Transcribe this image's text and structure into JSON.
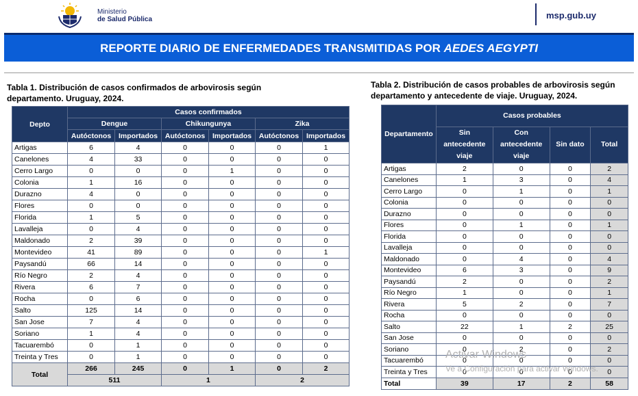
{
  "header": {
    "ministry_line1": "Ministerio",
    "ministry_line2": "de Salud Pública",
    "site": "msp.gub.uy",
    "logo_icon": "uruguay-coat-of-arms-icon"
  },
  "banner": {
    "title_prefix": "REPORTE DIARIO DE ENFERMEDADES TRANSMITIDAS POR ",
    "title_italic": "AEDES AEGYPTI"
  },
  "table1": {
    "caption_line1": "Tabla 1. Distribución de casos confirmados de arbovirosis según",
    "caption_line2": "departamento. Uruguay, 2024.",
    "header_depto": "Depto",
    "header_group": "Casos confirmados",
    "diseases": [
      "Dengue",
      "Chikungunya",
      "Zika"
    ],
    "subheaders": [
      "Autóctonos",
      "Importados",
      "Autóctonos",
      "Importados",
      "Autóctonos",
      "Importados"
    ],
    "rows": [
      {
        "d": "Artigas",
        "v": [
          "6",
          "4",
          "0",
          "0",
          "0",
          "1"
        ]
      },
      {
        "d": "Canelones",
        "v": [
          "4",
          "33",
          "0",
          "0",
          "0",
          "0"
        ]
      },
      {
        "d": "Cerro Largo",
        "v": [
          "0",
          "0",
          "0",
          "1",
          "0",
          "0"
        ]
      },
      {
        "d": "Colonia",
        "v": [
          "1",
          "16",
          "0",
          "0",
          "0",
          "0"
        ]
      },
      {
        "d": "Durazno",
        "v": [
          "4",
          "0",
          "0",
          "0",
          "0",
          "0"
        ]
      },
      {
        "d": "Flores",
        "v": [
          "0",
          "0",
          "0",
          "0",
          "0",
          "0"
        ]
      },
      {
        "d": "Florida",
        "v": [
          "1",
          "5",
          "0",
          "0",
          "0",
          "0"
        ]
      },
      {
        "d": "Lavalleja",
        "v": [
          "0",
          "4",
          "0",
          "0",
          "0",
          "0"
        ]
      },
      {
        "d": "Maldonado",
        "v": [
          "2",
          "39",
          "0",
          "0",
          "0",
          "0"
        ]
      },
      {
        "d": "Montevideo",
        "v": [
          "41",
          "89",
          "0",
          "0",
          "0",
          "1"
        ]
      },
      {
        "d": "Paysandú",
        "v": [
          "66",
          "14",
          "0",
          "0",
          "0",
          "0"
        ]
      },
      {
        "d": "Río Negro",
        "v": [
          "2",
          "4",
          "0",
          "0",
          "0",
          "0"
        ]
      },
      {
        "d": "Rivera",
        "v": [
          "6",
          "7",
          "0",
          "0",
          "0",
          "0"
        ]
      },
      {
        "d": "Rocha",
        "v": [
          "0",
          "6",
          "0",
          "0",
          "0",
          "0"
        ]
      },
      {
        "d": "Salto",
        "v": [
          "125",
          "14",
          "0",
          "0",
          "0",
          "0"
        ]
      },
      {
        "d": "San Jose",
        "v": [
          "7",
          "4",
          "0",
          "0",
          "0",
          "0"
        ]
      },
      {
        "d": "Soriano",
        "v": [
          "1",
          "4",
          "0",
          "0",
          "0",
          "0"
        ]
      },
      {
        "d": "Tacuarembó",
        "v": [
          "0",
          "1",
          "0",
          "0",
          "0",
          "0"
        ]
      },
      {
        "d": "Treinta y Tres",
        "v": [
          "0",
          "1",
          "0",
          "0",
          "0",
          "0"
        ]
      }
    ],
    "total_label": "Total",
    "total_values": [
      "266",
      "245",
      "0",
      "1",
      "0",
      "2"
    ],
    "total_sums": [
      "511",
      "1",
      "2"
    ]
  },
  "table2": {
    "caption_line1": "Tabla 2. Distribución de casos probables de arbovirosis según",
    "caption_line2": "departamento y antecedente de viaje. Uruguay, 2024.",
    "header_depto": "Departamento",
    "header_group": "Casos probables",
    "subheaders": [
      "Sin antecedente viaje",
      "Con antecedente viaje",
      "Sin dato",
      "Total"
    ],
    "rows": [
      {
        "d": "Artigas",
        "v": [
          "2",
          "0",
          "0",
          "2"
        ]
      },
      {
        "d": "Canelones",
        "v": [
          "1",
          "3",
          "0",
          "4"
        ]
      },
      {
        "d": "Cerro Largo",
        "v": [
          "0",
          "1",
          "0",
          "1"
        ]
      },
      {
        "d": "Colonia",
        "v": [
          "0",
          "0",
          "0",
          "0"
        ]
      },
      {
        "d": "Durazno",
        "v": [
          "0",
          "0",
          "0",
          "0"
        ]
      },
      {
        "d": "Flores",
        "v": [
          "0",
          "1",
          "0",
          "1"
        ]
      },
      {
        "d": "Florida",
        "v": [
          "0",
          "0",
          "0",
          "0"
        ]
      },
      {
        "d": "Lavalleja",
        "v": [
          "0",
          "0",
          "0",
          "0"
        ]
      },
      {
        "d": "Maldonado",
        "v": [
          "0",
          "4",
          "0",
          "4"
        ]
      },
      {
        "d": "Montevideo",
        "v": [
          "6",
          "3",
          "0",
          "9"
        ]
      },
      {
        "d": "Paysandú",
        "v": [
          "2",
          "0",
          "0",
          "2"
        ]
      },
      {
        "d": "Río Negro",
        "v": [
          "1",
          "0",
          "0",
          "1"
        ]
      },
      {
        "d": "Rivera",
        "v": [
          "5",
          "2",
          "0",
          "7"
        ]
      },
      {
        "d": "Rocha",
        "v": [
          "0",
          "0",
          "0",
          "0"
        ]
      },
      {
        "d": "Salto",
        "v": [
          "22",
          "1",
          "2",
          "25"
        ]
      },
      {
        "d": "San Jose",
        "v": [
          "0",
          "0",
          "0",
          "0"
        ]
      },
      {
        "d": "Soriano",
        "v": [
          "0",
          "2",
          "0",
          "2"
        ]
      },
      {
        "d": "Tacuarembó",
        "v": [
          "0",
          "0",
          "0",
          "0"
        ]
      },
      {
        "d": "Treinta y Tres",
        "v": [
          "0",
          "0",
          "0",
          "0"
        ]
      }
    ],
    "total_label": "Total",
    "total_values": [
      "39",
      "17",
      "2",
      "58"
    ]
  },
  "watermark": {
    "line1": "Activar Windows",
    "line2": "Ve a Configuración para activar Windows."
  },
  "colors": {
    "banner": "#0b5ed7",
    "header_cell": "#1f3864",
    "total_cell": "#d9d9d9",
    "brand_text": "#1b2a6b"
  }
}
